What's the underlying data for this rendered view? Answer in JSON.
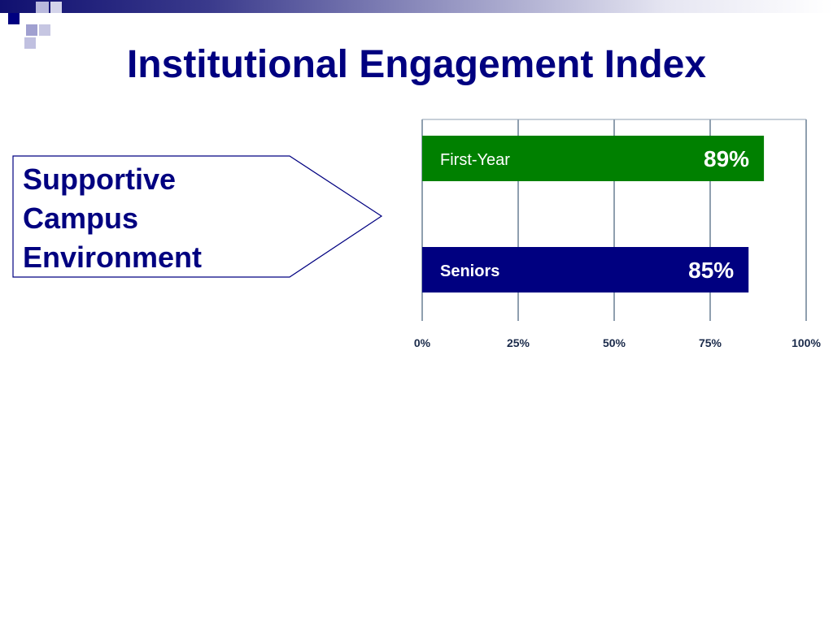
{
  "slide": {
    "title": "Institutional Engagement Index",
    "callout_lines": [
      "Supportive",
      "Campus",
      "Environment"
    ]
  },
  "colors": {
    "title": "#000080",
    "first_year_bar": "#008000",
    "seniors_bar": "#000080",
    "gridline": "#1f3f5f",
    "tick_label": "#1a2a4a"
  },
  "chart_data": {
    "type": "bar",
    "orientation": "horizontal",
    "categories": [
      "First-Year",
      "Seniors"
    ],
    "values": [
      89,
      85
    ],
    "value_labels": [
      "89%",
      "85%"
    ],
    "xlim": [
      0,
      100
    ],
    "xticks": [
      0,
      25,
      50,
      75,
      100
    ],
    "xtick_labels": [
      "0%",
      "25%",
      "50%",
      "75%",
      "100%"
    ],
    "grid": true
  }
}
